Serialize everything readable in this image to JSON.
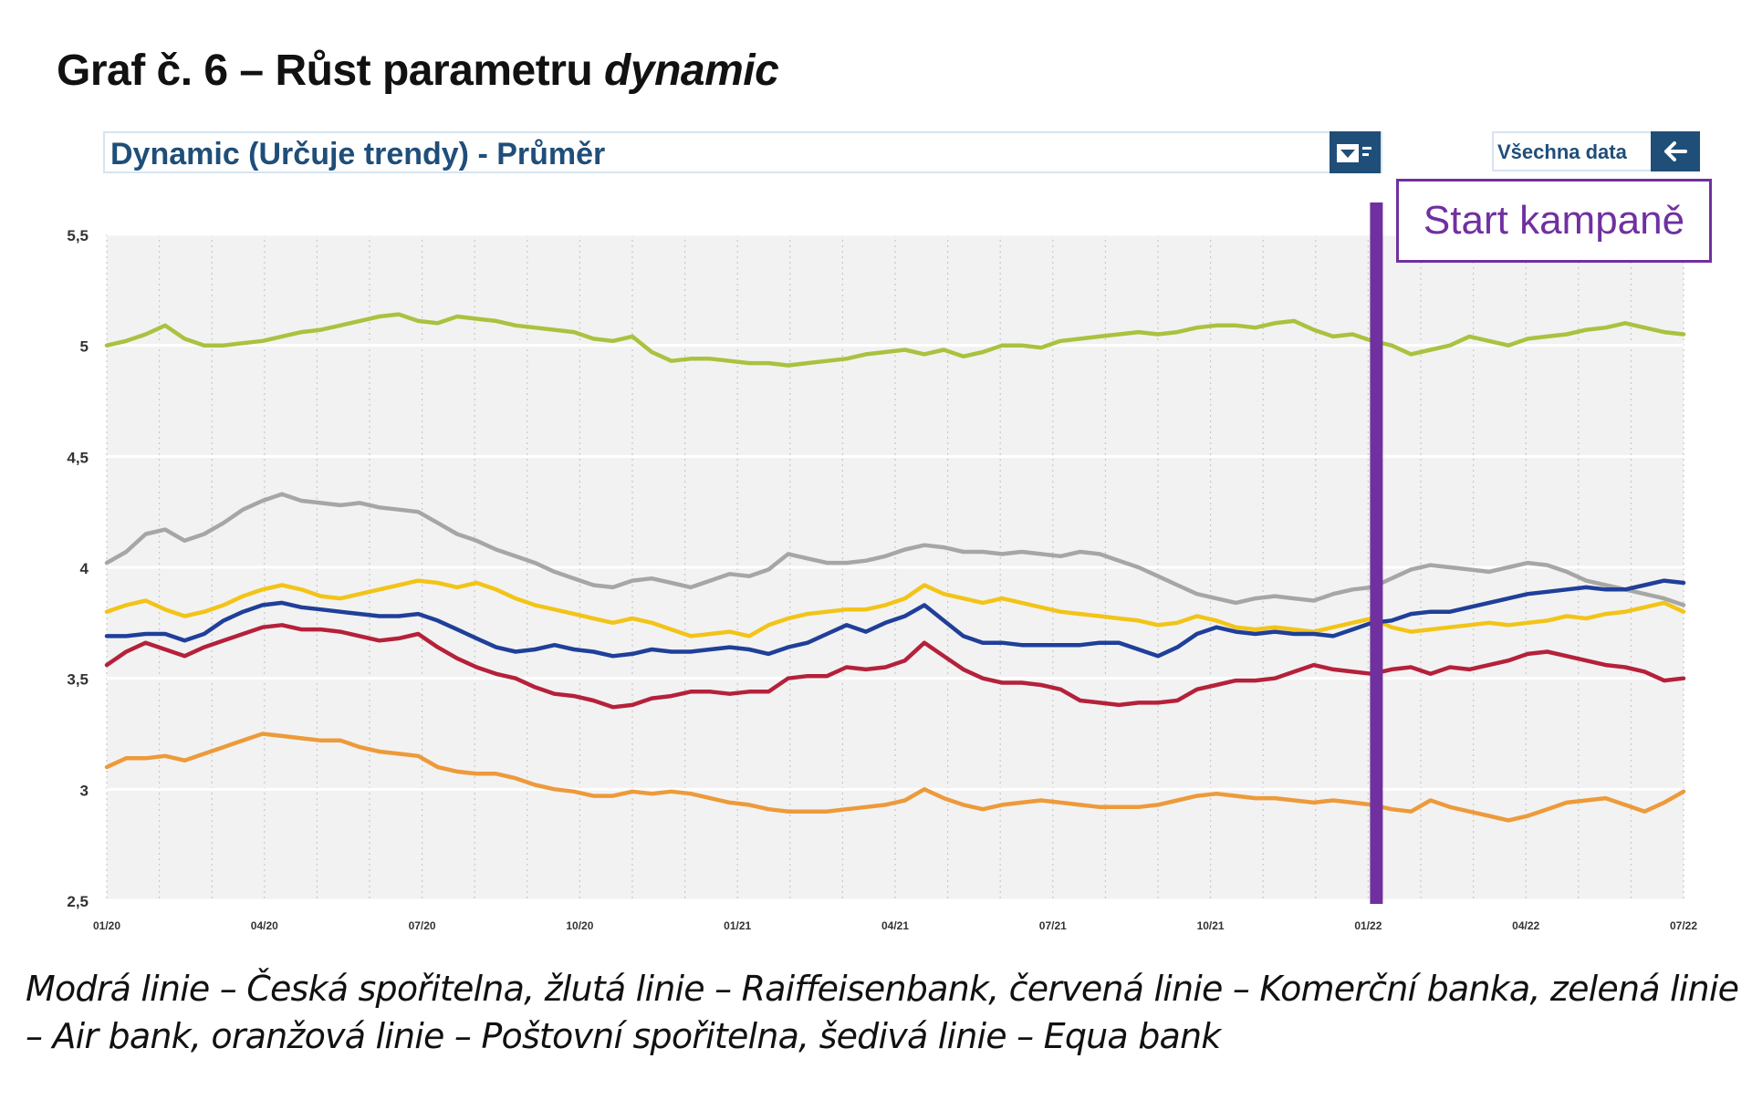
{
  "page_title": {
    "prefix": "Graf č. 6 – Růst parametru ",
    "emphasis": "dynamic"
  },
  "selector": {
    "value": "Dynamic (Určuje trendy) - Průměr",
    "icon": "dropdown-filter-icon"
  },
  "all_data_button": {
    "label": "Všechna data",
    "icon": "arrow-left-icon"
  },
  "campaign_label": "Start kampaně",
  "caption": "Modrá linie – Česká spořitelna, žlutá linie – Raiffeisenbank, červená linie – Komerční banka, zelená linie – Air bank, oranžová linie – Poštovní spořitelna, šedivá linie – Equa bank",
  "colors": {
    "accent": "#1f4e79",
    "campaign": "#7030a0",
    "plot_bg": "#f2f2f2"
  },
  "chart_data": {
    "type": "line",
    "x_ticks": [
      "01/20",
      "04/20",
      "07/20",
      "10/20",
      "01/21",
      "04/21",
      "07/21",
      "10/21",
      "01/22",
      "04/22",
      "07/22"
    ],
    "y_ticks": [
      "2,5",
      "3",
      "3,5",
      "4",
      "4,5",
      "5",
      "5,5"
    ],
    "ylim": [
      2.5,
      5.5
    ],
    "x_range_months": [
      "2020-01",
      "2022-07"
    ],
    "campaign_marker_x": "01/22",
    "grid": true,
    "series": [
      {
        "name": "Air bank",
        "color": "#a9c23f",
        "values": [
          5.0,
          5.02,
          5.05,
          5.09,
          5.03,
          5.0,
          5.0,
          5.01,
          5.02,
          5.04,
          5.06,
          5.07,
          5.09,
          5.11,
          5.13,
          5.14,
          5.11,
          5.1,
          5.13,
          5.12,
          5.11,
          5.09,
          5.08,
          5.07,
          5.06,
          5.03,
          5.02,
          5.04,
          4.97,
          4.93,
          4.94,
          4.94,
          4.93,
          4.92,
          4.92,
          4.91,
          4.92,
          4.93,
          4.94,
          4.96,
          4.97,
          4.98,
          4.96,
          4.98,
          4.95,
          4.97,
          5.0,
          5.0,
          4.99,
          5.02,
          5.03,
          5.04,
          5.05,
          5.06,
          5.05,
          5.06,
          5.08,
          5.09,
          5.09,
          5.08,
          5.1,
          5.11,
          5.07,
          5.04,
          5.05,
          5.02,
          5.0,
          4.96,
          4.98,
          5.0,
          5.04,
          5.02,
          5.0,
          5.03,
          5.04,
          5.05,
          5.07,
          5.08,
          5.1,
          5.08,
          5.06,
          5.05
        ]
      },
      {
        "name": "Equa bank",
        "color": "#a6a6a6",
        "values": [
          4.02,
          4.07,
          4.15,
          4.17,
          4.12,
          4.15,
          4.2,
          4.26,
          4.3,
          4.33,
          4.3,
          4.29,
          4.28,
          4.29,
          4.27,
          4.26,
          4.25,
          4.2,
          4.15,
          4.12,
          4.08,
          4.05,
          4.02,
          3.98,
          3.95,
          3.92,
          3.91,
          3.94,
          3.95,
          3.93,
          3.91,
          3.94,
          3.97,
          3.96,
          3.99,
          4.06,
          4.04,
          4.02,
          4.02,
          4.03,
          4.05,
          4.08,
          4.1,
          4.09,
          4.07,
          4.07,
          4.06,
          4.07,
          4.06,
          4.05,
          4.07,
          4.06,
          4.03,
          4.0,
          3.96,
          3.92,
          3.88,
          3.86,
          3.84,
          3.86,
          3.87,
          3.86,
          3.85,
          3.88,
          3.9,
          3.91,
          3.95,
          3.99,
          4.01,
          4.0,
          3.99,
          3.98,
          4.0,
          4.02,
          4.01,
          3.98,
          3.94,
          3.92,
          3.9,
          3.88,
          3.86,
          3.83
        ]
      },
      {
        "name": "Raiffeisenbank",
        "color": "#f2c418",
        "values": [
          3.8,
          3.83,
          3.85,
          3.81,
          3.78,
          3.8,
          3.83,
          3.87,
          3.9,
          3.92,
          3.9,
          3.87,
          3.86,
          3.88,
          3.9,
          3.92,
          3.94,
          3.93,
          3.91,
          3.93,
          3.9,
          3.86,
          3.83,
          3.81,
          3.79,
          3.77,
          3.75,
          3.77,
          3.75,
          3.72,
          3.69,
          3.7,
          3.71,
          3.69,
          3.74,
          3.77,
          3.79,
          3.8,
          3.81,
          3.81,
          3.83,
          3.86,
          3.92,
          3.88,
          3.86,
          3.84,
          3.86,
          3.84,
          3.82,
          3.8,
          3.79,
          3.78,
          3.77,
          3.76,
          3.74,
          3.75,
          3.78,
          3.76,
          3.73,
          3.72,
          3.73,
          3.72,
          3.71,
          3.73,
          3.75,
          3.77,
          3.73,
          3.71,
          3.72,
          3.73,
          3.74,
          3.75,
          3.74,
          3.75,
          3.76,
          3.78,
          3.77,
          3.79,
          3.8,
          3.82,
          3.84,
          3.8
        ]
      },
      {
        "name": "Česká spořitelna",
        "color": "#1f3f99",
        "values": [
          3.69,
          3.69,
          3.7,
          3.7,
          3.67,
          3.7,
          3.76,
          3.8,
          3.83,
          3.84,
          3.82,
          3.81,
          3.8,
          3.79,
          3.78,
          3.78,
          3.79,
          3.76,
          3.72,
          3.68,
          3.64,
          3.62,
          3.63,
          3.65,
          3.63,
          3.62,
          3.6,
          3.61,
          3.63,
          3.62,
          3.62,
          3.63,
          3.64,
          3.63,
          3.61,
          3.64,
          3.66,
          3.7,
          3.74,
          3.71,
          3.75,
          3.78,
          3.83,
          3.76,
          3.69,
          3.66,
          3.66,
          3.65,
          3.65,
          3.65,
          3.65,
          3.66,
          3.66,
          3.63,
          3.6,
          3.64,
          3.7,
          3.73,
          3.71,
          3.7,
          3.71,
          3.7,
          3.7,
          3.69,
          3.72,
          3.75,
          3.76,
          3.79,
          3.8,
          3.8,
          3.82,
          3.84,
          3.86,
          3.88,
          3.89,
          3.9,
          3.91,
          3.9,
          3.9,
          3.92,
          3.94,
          3.93
        ]
      },
      {
        "name": "Komerční banka",
        "color": "#b5213a",
        "values": [
          3.56,
          3.62,
          3.66,
          3.63,
          3.6,
          3.64,
          3.67,
          3.7,
          3.73,
          3.74,
          3.72,
          3.72,
          3.71,
          3.69,
          3.67,
          3.68,
          3.7,
          3.64,
          3.59,
          3.55,
          3.52,
          3.5,
          3.46,
          3.43,
          3.42,
          3.4,
          3.37,
          3.38,
          3.41,
          3.42,
          3.44,
          3.44,
          3.43,
          3.44,
          3.44,
          3.5,
          3.51,
          3.51,
          3.55,
          3.54,
          3.55,
          3.58,
          3.66,
          3.6,
          3.54,
          3.5,
          3.48,
          3.48,
          3.47,
          3.45,
          3.4,
          3.39,
          3.38,
          3.39,
          3.39,
          3.4,
          3.45,
          3.47,
          3.49,
          3.49,
          3.5,
          3.53,
          3.56,
          3.54,
          3.53,
          3.52,
          3.54,
          3.55,
          3.52,
          3.55,
          3.54,
          3.56,
          3.58,
          3.61,
          3.62,
          3.6,
          3.58,
          3.56,
          3.55,
          3.53,
          3.49,
          3.5
        ]
      },
      {
        "name": "Poštovní spořitelna",
        "color": "#ed9a3b",
        "values": [
          3.1,
          3.14,
          3.14,
          3.15,
          3.13,
          3.16,
          3.19,
          3.22,
          3.25,
          3.24,
          3.23,
          3.22,
          3.22,
          3.19,
          3.17,
          3.16,
          3.15,
          3.1,
          3.08,
          3.07,
          3.07,
          3.05,
          3.02,
          3.0,
          2.99,
          2.97,
          2.97,
          2.99,
          2.98,
          2.99,
          2.98,
          2.96,
          2.94,
          2.93,
          2.91,
          2.9,
          2.9,
          2.9,
          2.91,
          2.92,
          2.93,
          2.95,
          3.0,
          2.96,
          2.93,
          2.91,
          2.93,
          2.94,
          2.95,
          2.94,
          2.93,
          2.92,
          2.92,
          2.92,
          2.93,
          2.95,
          2.97,
          2.98,
          2.97,
          2.96,
          2.96,
          2.95,
          2.94,
          2.95,
          2.94,
          2.93,
          2.91,
          2.9,
          2.95,
          2.92,
          2.9,
          2.88,
          2.86,
          2.88,
          2.91,
          2.94,
          2.95,
          2.96,
          2.93,
          2.9,
          2.94,
          2.99
        ]
      }
    ]
  }
}
